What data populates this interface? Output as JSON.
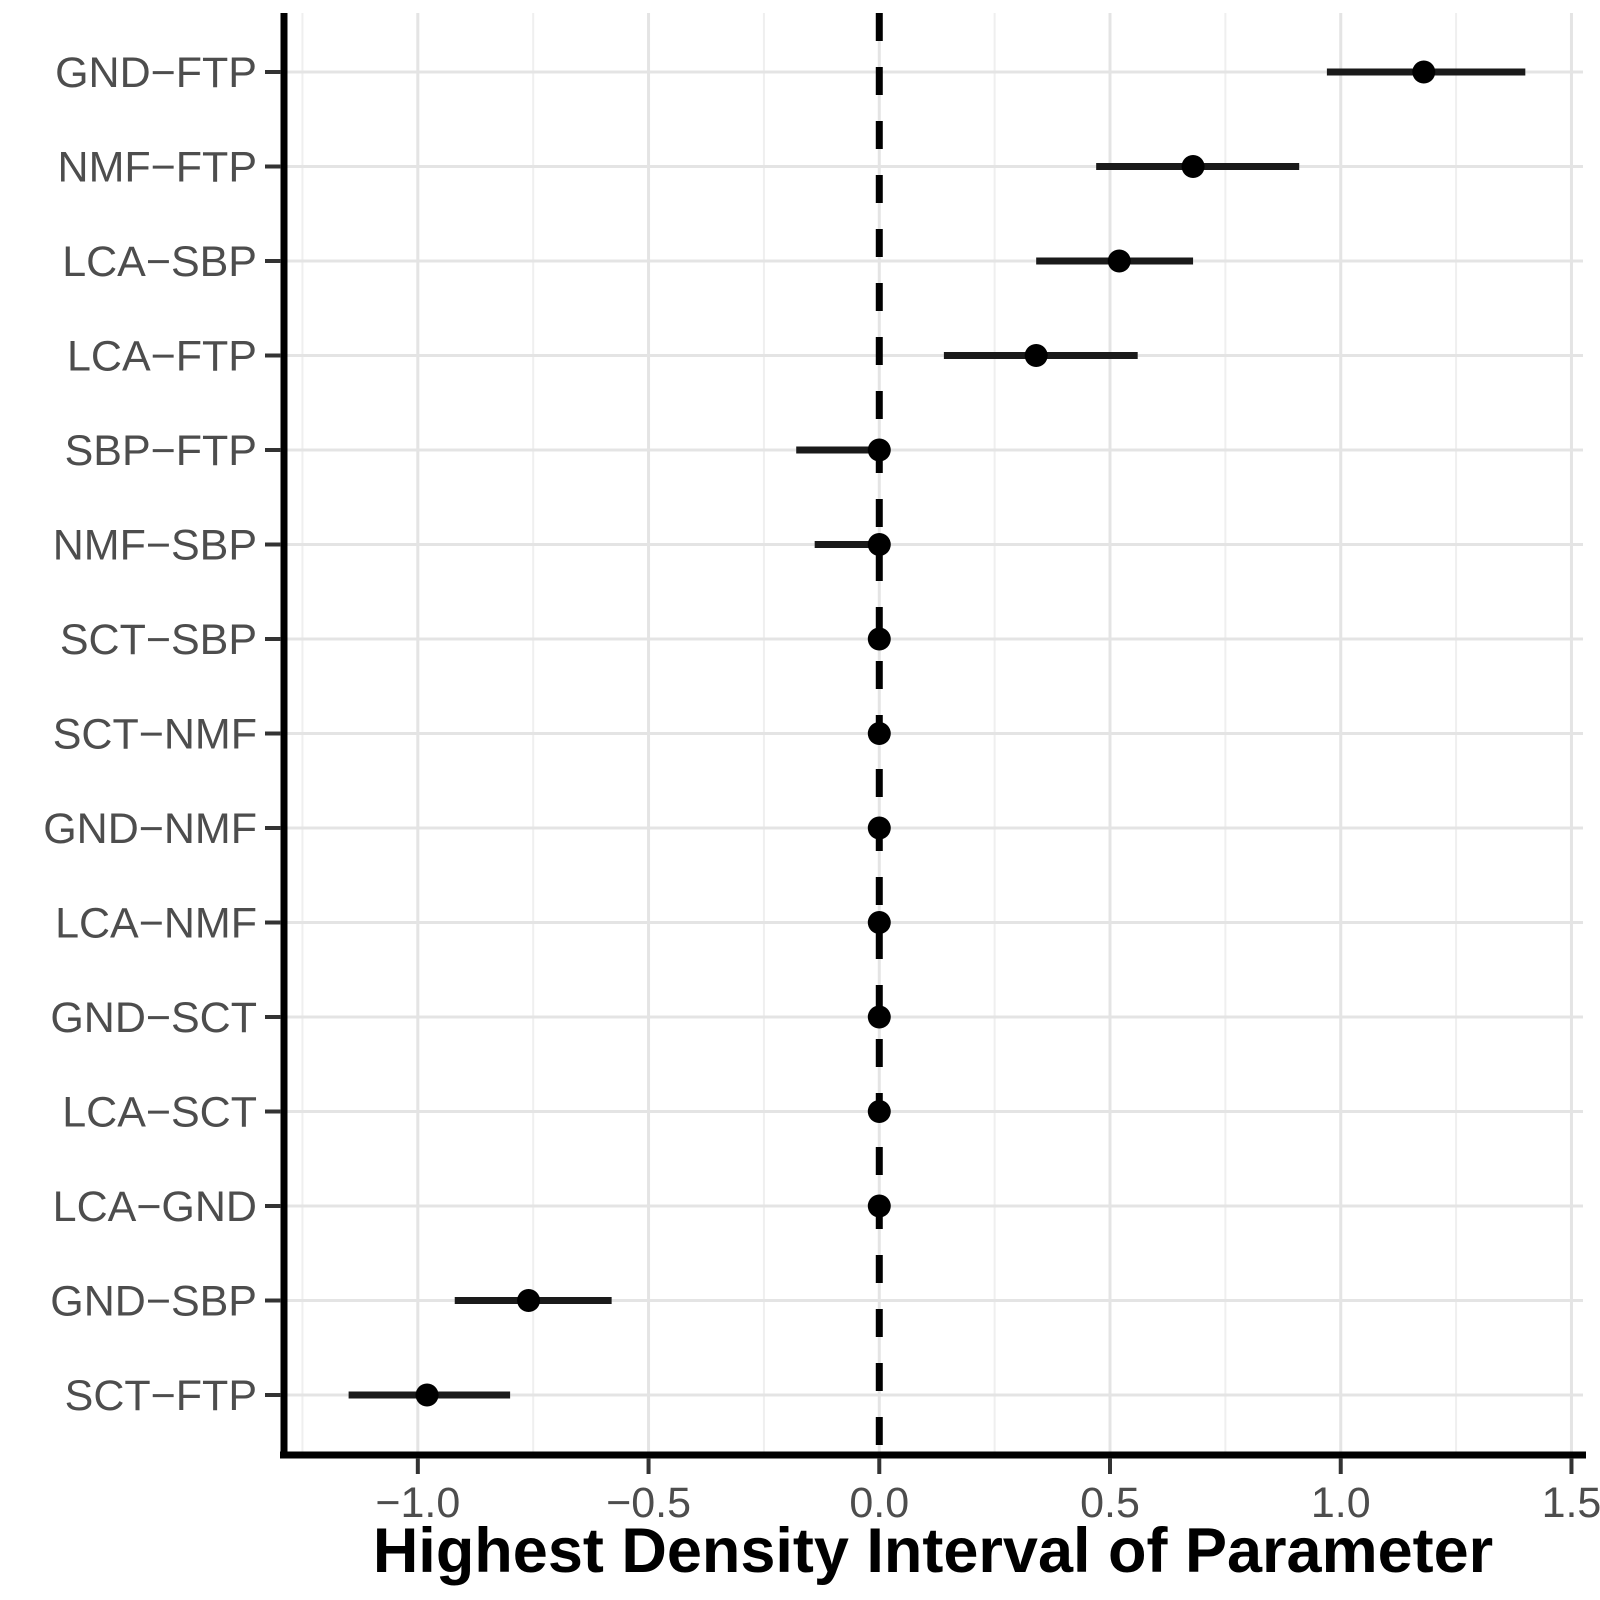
{
  "figure": {
    "background": "#ffffff"
  },
  "chart_data": {
    "type": "scatter",
    "subtype": "forest-interval-plot",
    "title": "",
    "xlabel": "Highest Density Interval of Parameter",
    "ylabel": "",
    "categories": [
      "GND−FTP",
      "NMF−FTP",
      "LCA−SBP",
      "LCA−FTP",
      "SBP−FTP",
      "NMF−SBP",
      "SCT−SBP",
      "SCT−NMF",
      "GND−NMF",
      "LCA−NMF",
      "GND−SCT",
      "LCA−SCT",
      "LCA−GND",
      "GND−SBP",
      "SCT−FTP"
    ],
    "series": [
      {
        "name": "HDI of parameter",
        "points": [
          1.18,
          0.68,
          0.52,
          0.34,
          0.0,
          0.0,
          0.0,
          0.0,
          0.0,
          0.0,
          0.0,
          0.0,
          0.0,
          -0.76,
          -0.98
        ],
        "lower": [
          0.97,
          0.47,
          0.34,
          0.14,
          -0.18,
          -0.14,
          -0.02,
          -0.02,
          -0.01,
          -0.02,
          -0.01,
          -0.02,
          -0.01,
          -0.92,
          -1.15
        ],
        "upper": [
          1.4,
          0.91,
          0.68,
          0.56,
          0.02,
          0.02,
          0.02,
          0.02,
          0.01,
          0.02,
          0.01,
          0.02,
          0.01,
          -0.58,
          -0.8
        ]
      }
    ],
    "x_ticks": [
      -1.0,
      -0.5,
      0.0,
      0.5,
      1.0,
      1.5
    ],
    "x_tick_labels": [
      "−1.0",
      "−0.5",
      "0.0",
      "0.5",
      "1.0",
      "1.5"
    ],
    "xlim": [
      -1.29,
      1.525
    ],
    "reference_line": 0.0,
    "grid": true,
    "legend": "none",
    "colors": {
      "point": "#000000",
      "interval": "#1a1a1a",
      "reference_line": "#000000",
      "grid_major": "#e4e4e4",
      "grid_minor": "#efefef",
      "axis_line": "#000000",
      "tick_mark": "#333333",
      "tick_label": "#4d4d4d",
      "title": "#000000",
      "panel_background": "#ffffff"
    }
  }
}
